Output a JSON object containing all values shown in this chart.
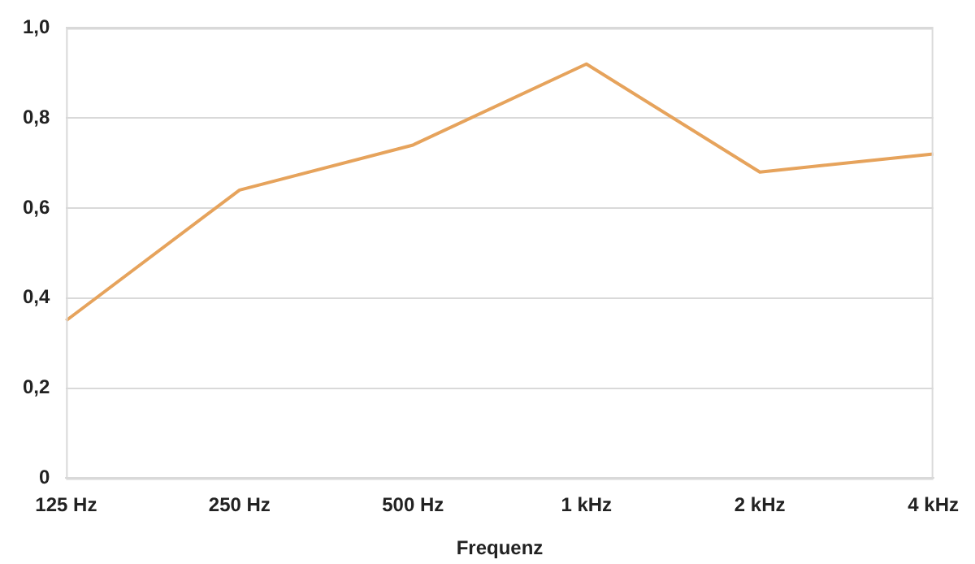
{
  "chart_data": {
    "type": "line",
    "xlabel": "Frequenz",
    "categories": [
      "125 Hz",
      "250 Hz",
      "500 Hz",
      "1 kHz",
      "2 kHz",
      "4 kHz"
    ],
    "series": [
      {
        "color": "#e6a35c",
        "values": [
          0.35,
          0.64,
          0.74,
          0.92,
          0.68,
          0.72
        ]
      }
    ],
    "ylim": [
      0,
      1
    ],
    "yticks": [
      {
        "value": 0,
        "label": "0"
      },
      {
        "value": 0.2,
        "label": "0,2"
      },
      {
        "value": 0.4,
        "label": "0,4"
      },
      {
        "value": 0.6,
        "label": "0,6"
      },
      {
        "value": 0.8,
        "label": "0,8"
      },
      {
        "value": 1,
        "label": "1,0"
      }
    ],
    "grid": "y",
    "legend": false,
    "marker": "none",
    "line_style": "solid"
  }
}
